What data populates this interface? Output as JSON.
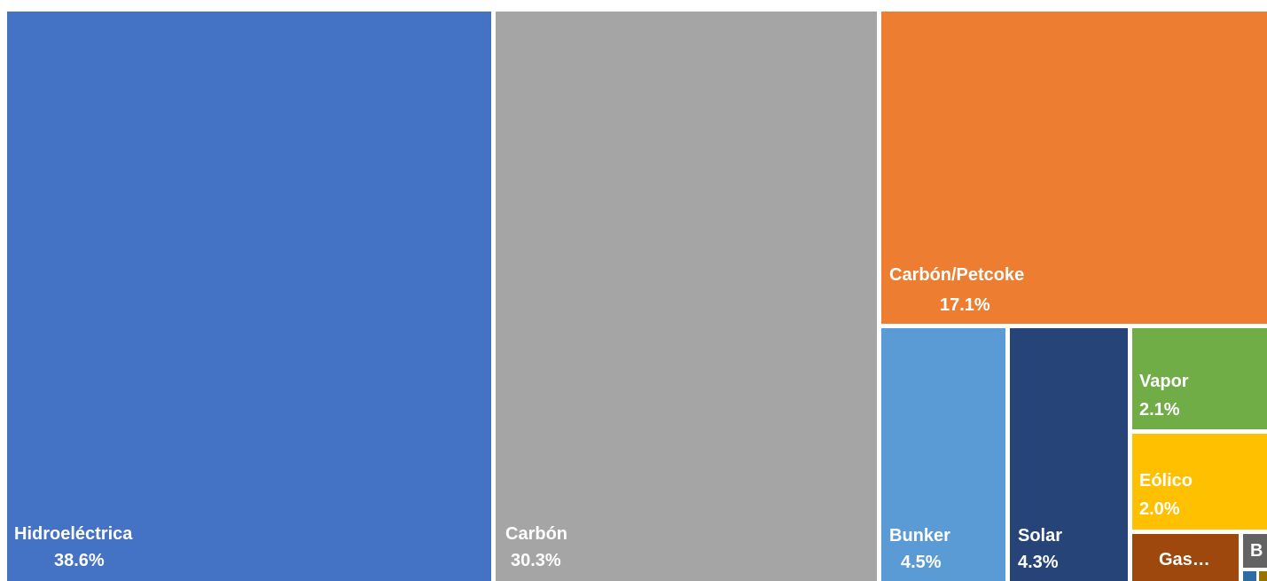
{
  "chart_data": {
    "type": "treemap",
    "title": "",
    "label_color": "#ffffff",
    "items": [
      {
        "name": "Hidroeléctrica",
        "value": 38.6,
        "value_label": "38.6%",
        "color": "#4472C4"
      },
      {
        "name": "Carbón",
        "value": 30.3,
        "value_label": "30.3%",
        "color": "#A5A5A5"
      },
      {
        "name": "Carbón/Petcoke",
        "value": 17.1,
        "value_label": "17.1%",
        "color": "#ED7D31"
      },
      {
        "name": "Bunker",
        "value": 4.5,
        "value_label": "4.5%",
        "color": "#5B9BD5"
      },
      {
        "name": "Solar",
        "value": 4.3,
        "value_label": "4.3%",
        "color": "#264478"
      },
      {
        "name": "Vapor",
        "value": 2.1,
        "value_label": "2.1%",
        "color": "#70AD47"
      },
      {
        "name": "Eólico",
        "value": 2.0,
        "value_label": "2.0%",
        "color": "#FFC000"
      },
      {
        "name": "Gas…",
        "value": null,
        "value_label": "",
        "color": "#9E480E"
      },
      {
        "name": "B",
        "value": null,
        "value_label": "",
        "color": "#636363"
      },
      {
        "name": "",
        "value": null,
        "value_label": "",
        "color": "#2E6DA4"
      },
      {
        "name": "",
        "value": null,
        "value_label": "",
        "color": "#997300"
      }
    ]
  }
}
